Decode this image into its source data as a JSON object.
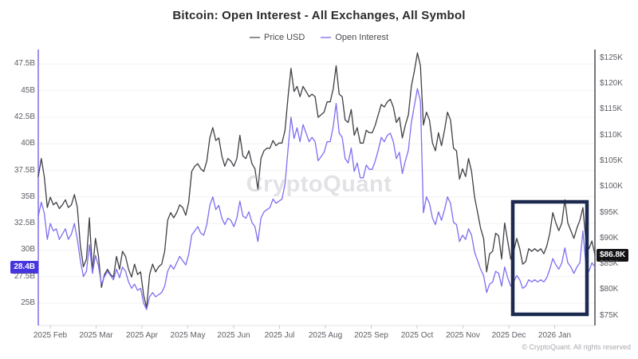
{
  "watermark": {
    "text": "CryptoQuant"
  },
  "footer": {
    "copyright": "© CryptoQuant. All rights reserved"
  },
  "legend": {
    "items": [
      {
        "label": "Price USD",
        "swatch_color": "#8f8f96"
      },
      {
        "label": "Open Interest",
        "swatch_color": "#a89ef2"
      }
    ]
  },
  "chart_data": {
    "type": "line",
    "title": "Bitcoin: Open Interest - All Exchanges, All Symbol",
    "grid": "faint-horizontal",
    "legend_position": "top",
    "x_tick_labels": [
      "2025 Feb",
      "2025 Mar",
      "2025 Apr",
      "2025 May",
      "2025 Jun",
      "2025 Jul",
      "2025 Aug",
      "2025 Sep",
      "2025 Oct",
      "2025 Nov",
      "2025 Dec",
      "2026 Jan"
    ],
    "left_axis": {
      "name": "Open Interest",
      "unit": "USD billions",
      "tick_labels": [
        "47.5B",
        "45B",
        "42.5B",
        "40B",
        "37.5B",
        "35B",
        "32.5B",
        "30B",
        "27.5B",
        "25B"
      ],
      "tick_values": [
        47.5,
        45,
        42.5,
        40,
        37.5,
        35,
        32.5,
        30,
        27.5,
        25
      ],
      "range": [
        22.9,
        48.65
      ],
      "current_value": 28.4,
      "current_label": "28.4B",
      "axis_color": "#7d6ef0"
    },
    "right_axis": {
      "name": "Price USD",
      "unit": "USD thousands",
      "tick_labels": [
        "$125K",
        "$120K",
        "$115K",
        "$110K",
        "$105K",
        "$100K",
        "$95K",
        "$90K",
        "$85K",
        "$80K",
        "$75K"
      ],
      "tick_values": [
        125,
        120,
        115,
        110,
        105,
        100,
        95,
        90,
        85,
        80,
        75
      ],
      "range": [
        73.1,
        126.2
      ],
      "current_value": 86.8,
      "current_label": "$86.8K",
      "axis_color": "#4b4b52"
    },
    "series": [
      {
        "name": "Price USD",
        "axis": "right",
        "color": "#3f3f45",
        "values": [
          102,
          105.5,
          102,
          96,
          98,
          96.5,
          97,
          95.8,
          96.5,
          97.5,
          96,
          96.5,
          98.5,
          96,
          88.5,
          84.5,
          86,
          94,
          83.5,
          90,
          86.5,
          80.5,
          83,
          84,
          83,
          82.5,
          86.5,
          84,
          87.5,
          86.5,
          84,
          82.5,
          85,
          83,
          83.5,
          79,
          76.5,
          83,
          85,
          83.5,
          84.5,
          85,
          87.5,
          93.5,
          95,
          94,
          95,
          96.5,
          96,
          94.5,
          97,
          103,
          104,
          104.5,
          103.5,
          103,
          105,
          109.5,
          111.5,
          109,
          109.5,
          106,
          104,
          105.5,
          105,
          104,
          105.5,
          110,
          106,
          105.5,
          107,
          104.5,
          103.5,
          99.5,
          105.5,
          107,
          107.5,
          107.5,
          109,
          108,
          108.5,
          108.5,
          111,
          117.5,
          123,
          118.5,
          119.5,
          117.5,
          119.5,
          118.5,
          117.5,
          118,
          117.5,
          113.5,
          114,
          114.5,
          116.5,
          116.5,
          119,
          123.5,
          118,
          117.5,
          113,
          112.5,
          115,
          110,
          111.5,
          108.5,
          108.5,
          111,
          110.5,
          110.5,
          112,
          114,
          116,
          115.5,
          116.5,
          117,
          115.5,
          112.5,
          113.5,
          109.5,
          112,
          114,
          119.5,
          122.5,
          126,
          123.5,
          112,
          114.5,
          113,
          108.5,
          107,
          110.5,
          108,
          111,
          114.5,
          113,
          107.5,
          107,
          101.5,
          103.5,
          102,
          105.5,
          103,
          98,
          95,
          92,
          90,
          83.5,
          87,
          87.5,
          91,
          90.5,
          86,
          93,
          89.5,
          86,
          87.5,
          90,
          88,
          85,
          85.5,
          88,
          87.5,
          88,
          87.5,
          88,
          87,
          88.5,
          91,
          95,
          93,
          91.5,
          93,
          97.5,
          93,
          91.5,
          90,
          92,
          93.5,
          96,
          89.5,
          88,
          89.5,
          86.8
        ]
      },
      {
        "name": "Open Interest",
        "axis": "left",
        "color": "#7d6ef0",
        "values": [
          33.2,
          34.5,
          33.5,
          31,
          32.5,
          31.8,
          32,
          31,
          31.5,
          32,
          31,
          31.5,
          32.5,
          31,
          29,
          27.5,
          28,
          30.5,
          27.8,
          29.5,
          28.5,
          26.8,
          27.5,
          28,
          27.6,
          27.2,
          28.2,
          27.4,
          28.4,
          28,
          27,
          26.4,
          26.8,
          26.2,
          26.4,
          25,
          24.4,
          25.6,
          26,
          25.6,
          25.8,
          26,
          26.6,
          28,
          28.6,
          28.2,
          28.8,
          29.4,
          29,
          28.6,
          29.6,
          31.4,
          31.8,
          32.2,
          31.6,
          31.4,
          32.4,
          34.2,
          35,
          33.8,
          34.2,
          33,
          32.4,
          33,
          32.8,
          32.2,
          33,
          34.6,
          33.2,
          33,
          33.6,
          32.6,
          32.2,
          30.8,
          33,
          33.6,
          33.8,
          34,
          34.8,
          34.4,
          34.6,
          34.8,
          36.2,
          39.5,
          42.5,
          40.5,
          41.5,
          40.2,
          41.8,
          41,
          40.2,
          40.6,
          40.2,
          38.4,
          38.8,
          39.2,
          40.2,
          40.2,
          41.6,
          43.8,
          41,
          40.6,
          38.6,
          38.2,
          39.6,
          37.4,
          38.2,
          36.8,
          36.8,
          38,
          37.6,
          37.6,
          38.4,
          39.4,
          40.6,
          40.2,
          40.8,
          41,
          40.2,
          38.6,
          39.2,
          37.2,
          38.4,
          39.4,
          42,
          43.6,
          45.2,
          44,
          33.5,
          35,
          34.4,
          33,
          32.4,
          33.6,
          32.8,
          33.8,
          35,
          34.4,
          32.6,
          32.4,
          30.8,
          31.4,
          31,
          32,
          31.4,
          29.8,
          29,
          28.2,
          27.6,
          26,
          26.8,
          27,
          28,
          27.8,
          26.6,
          28.4,
          27.4,
          26.6,
          27,
          27.6,
          27.2,
          26.4,
          26.6,
          27.2,
          27,
          27.2,
          27,
          27.2,
          27,
          27.4,
          28.2,
          29.2,
          28.6,
          28.2,
          28.8,
          30.2,
          28.8,
          28.4,
          27.8,
          28.4,
          28.8,
          31.8,
          28.6,
          28,
          28.8,
          28.4
        ]
      }
    ],
    "annotation_box": {
      "description": "navy highlight rectangle over recent consolidation",
      "x_span_labels": [
        "2025 Dec",
        "2026 Jan"
      ],
      "color": "#1b2a4e",
      "px": {
        "x": 643,
        "y": 253,
        "w": 93,
        "h": 141
      }
    }
  }
}
